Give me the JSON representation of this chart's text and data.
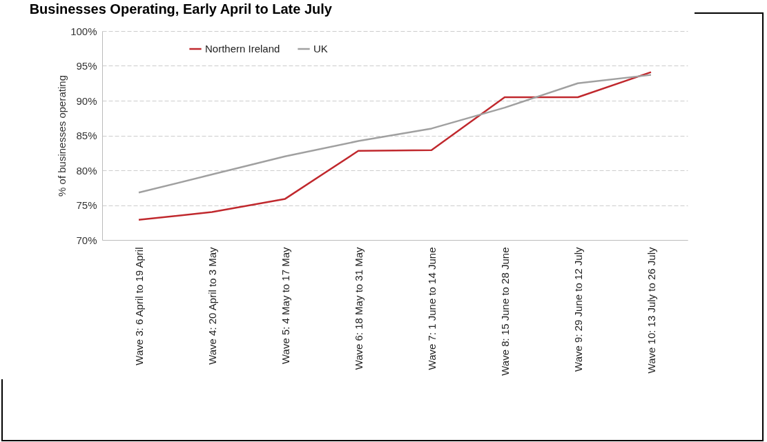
{
  "chart_data": {
    "type": "line",
    "title": "Businesses Operating, Early April to Late July",
    "ylabel": "% of businesses operating",
    "categories": [
      "Wave 3: 6 April to 19 April",
      "Wave 4: 20 April to 3 May",
      "Wave 5: 4 May to 17 May",
      "Wave 6: 18 May to 31 May",
      "Wave 7: 1 June to 14 June",
      "Wave 8: 15 June to 28 June",
      "Wave 9: 29 June to 12 July",
      "Wave 10: 13 July to 26 July"
    ],
    "series": [
      {
        "name": "Northern Ireland",
        "color": "#c0282d",
        "values": [
          72.9,
          74.0,
          75.9,
          82.8,
          82.9,
          90.5,
          90.5,
          94.1
        ]
      },
      {
        "name": "UK",
        "color": "#a0a0a0",
        "values": [
          76.8,
          79.4,
          82.0,
          84.2,
          86.0,
          89.0,
          92.5,
          93.7
        ]
      }
    ],
    "ylim": [
      70,
      100
    ],
    "yticks": [
      {
        "value": 70,
        "label": "70%"
      },
      {
        "value": 75,
        "label": "75%"
      },
      {
        "value": 80,
        "label": "80%"
      },
      {
        "value": 85,
        "label": "85%"
      },
      {
        "value": 90,
        "label": "90%"
      },
      {
        "value": 95,
        "label": "95%"
      },
      {
        "value": 100,
        "label": "100%"
      }
    ],
    "grid": "y",
    "legend": "top left",
    "line_style": "solid",
    "marker": "none"
  }
}
